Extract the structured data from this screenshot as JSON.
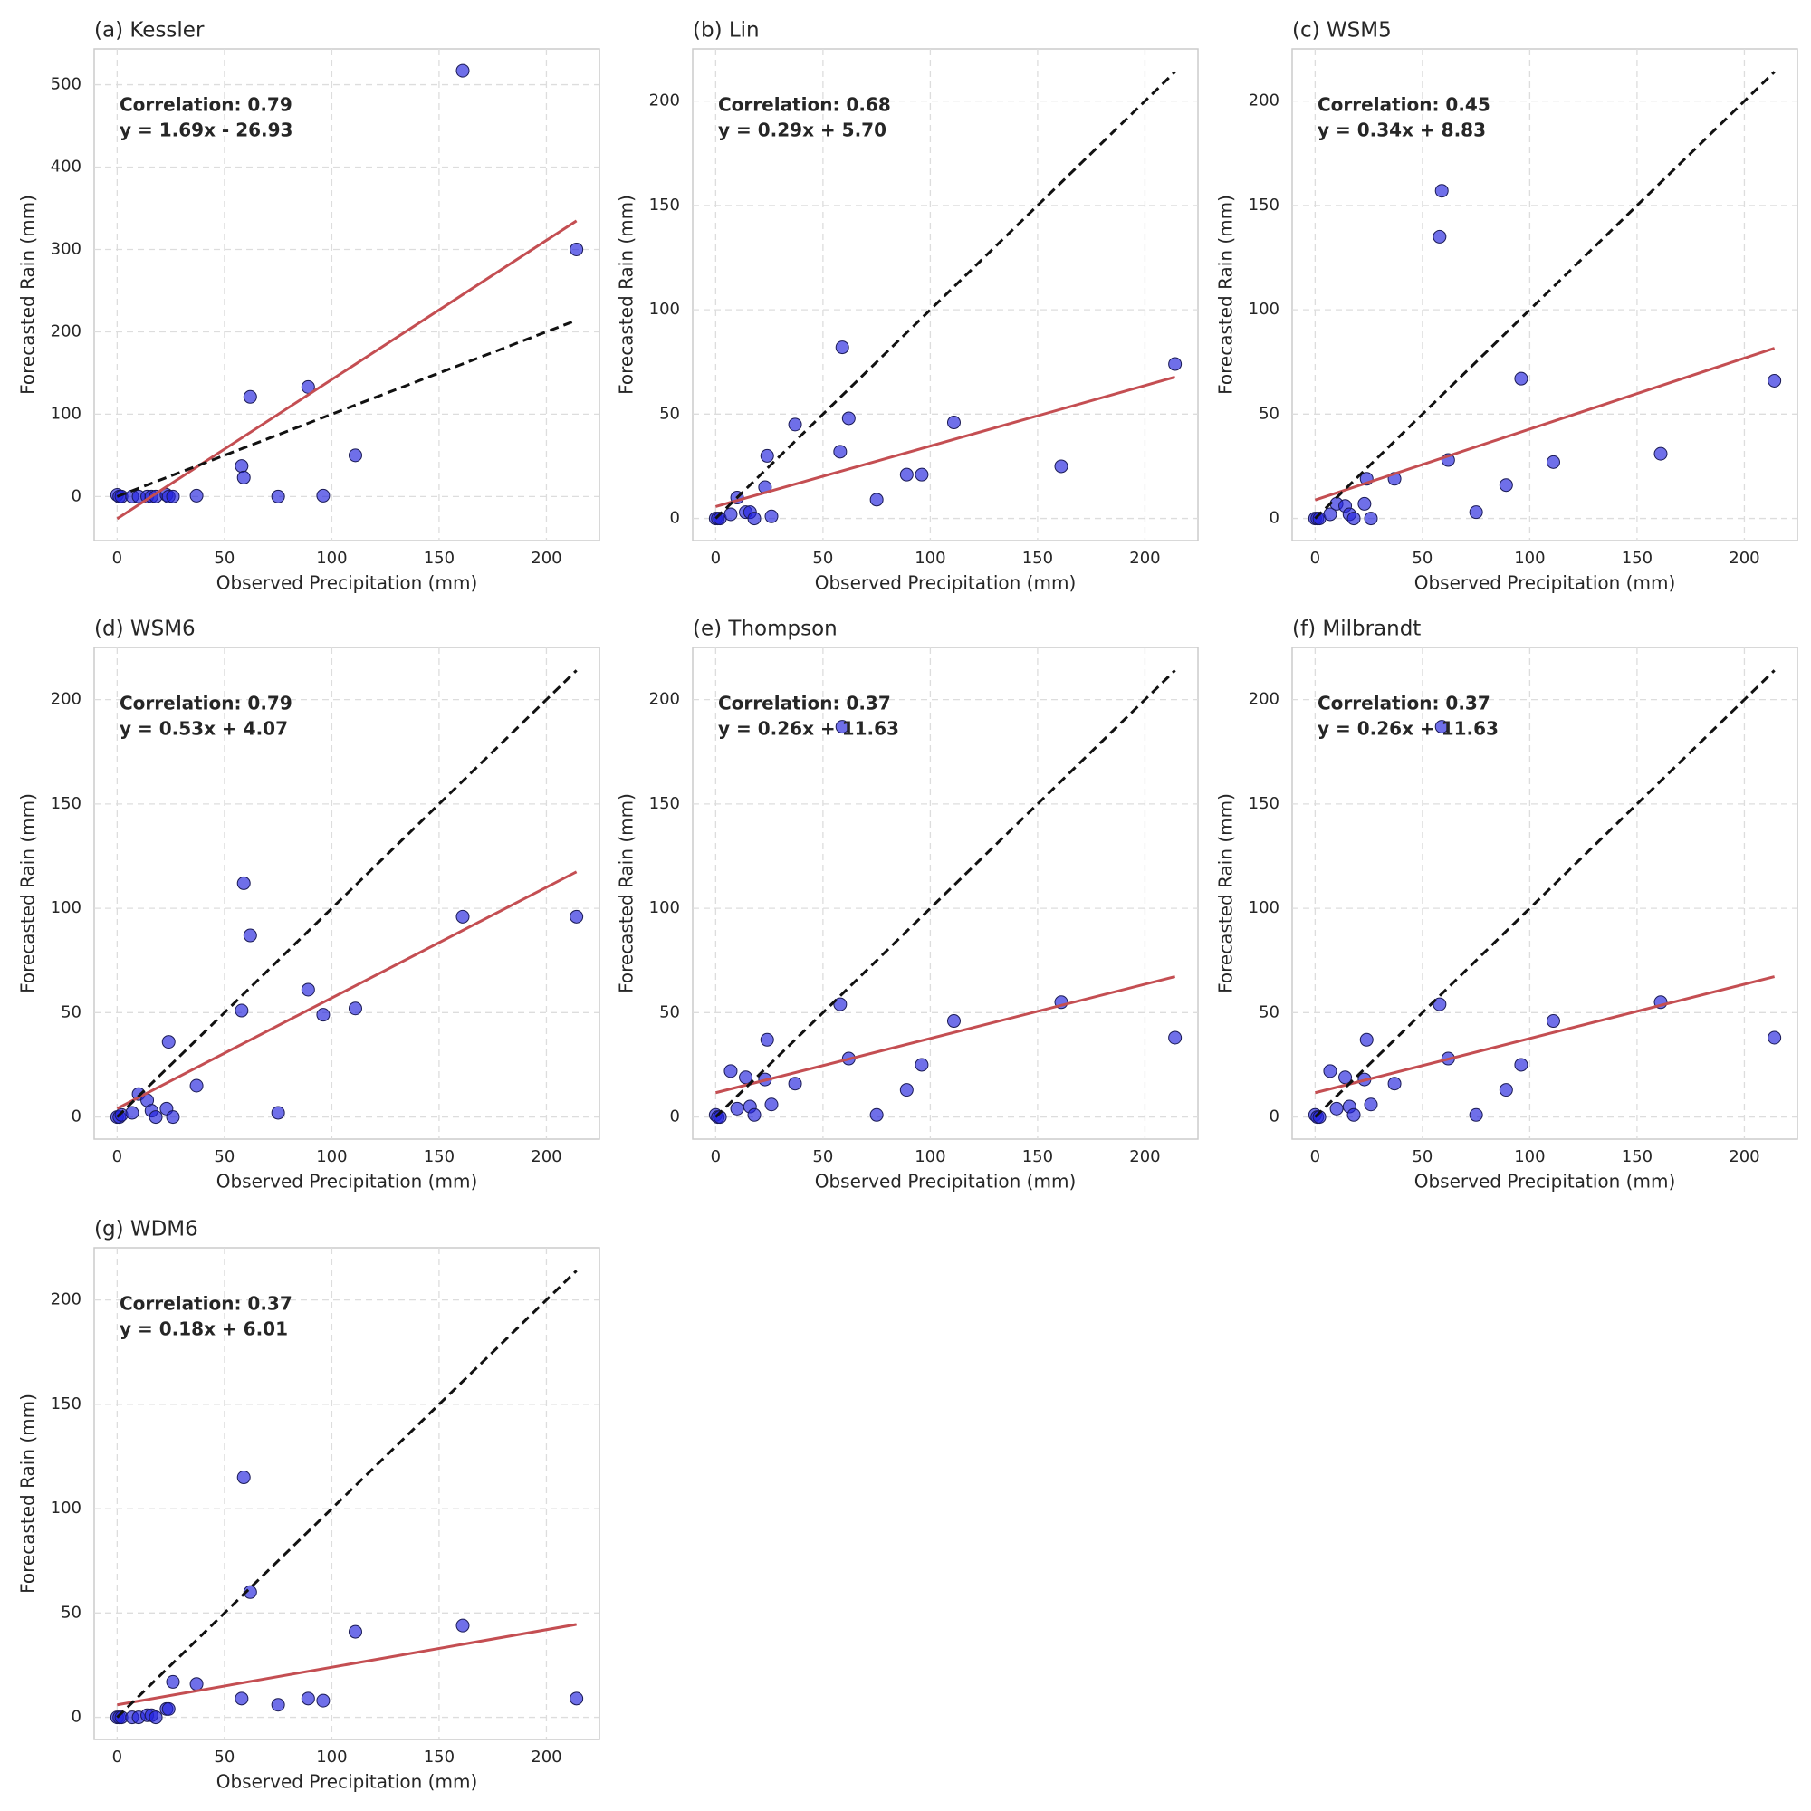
{
  "chart_data": [
    {
      "type": "scatter",
      "title": "(a) Kessler",
      "x_label": "Observed Precipitation (mm)",
      "y_label": "Forecasted Rain (mm)",
      "annotations": [
        "Correlation: 0.79",
        "y = 1.69x - 26.93"
      ],
      "x": [
        0,
        1,
        2,
        7,
        10,
        14,
        16,
        18,
        23,
        24,
        26,
        37,
        58,
        59,
        62,
        75,
        89,
        96,
        111,
        161,
        214
      ],
      "values": [
        2,
        0,
        0,
        0,
        0,
        0,
        0,
        0,
        2,
        0,
        0,
        1,
        37,
        23,
        121,
        0,
        133,
        1,
        50,
        517,
        300
      ],
      "color": "#2222dd",
      "fit_line": {
        "x": [
          0,
          214
        ],
        "y": [
          -26.93,
          334.73
        ],
        "color": "#c44e52"
      },
      "identity_line": {
        "x": [
          0,
          214
        ],
        "y": [
          0,
          214
        ],
        "color": "#111111"
      },
      "xlim": [
        -10.7,
        224.7
      ],
      "ylim": [
        -53.5,
        543.5
      ],
      "xticks": [
        0,
        50,
        100,
        150,
        200
      ],
      "yticks": [
        0,
        100,
        200,
        300,
        400,
        500
      ],
      "grid": true
    },
    {
      "type": "scatter",
      "title": "(b) Lin",
      "x_label": "Observed Precipitation (mm)",
      "y_label": "Forecasted Rain (mm)",
      "annotations": [
        "Correlation: 0.68",
        "y = 0.29x + 5.70"
      ],
      "x": [
        0,
        1,
        2,
        7,
        10,
        14,
        16,
        18,
        23,
        24,
        26,
        37,
        58,
        59,
        62,
        75,
        89,
        96,
        111,
        161,
        214
      ],
      "values": [
        0,
        0,
        0,
        2,
        10,
        3,
        3,
        0,
        15,
        30,
        1,
        45,
        32,
        82,
        48,
        9,
        21,
        21,
        46,
        25,
        74
      ],
      "color": "#2222dd",
      "fit_line": {
        "x": [
          0,
          214
        ],
        "y": [
          5.7,
          67.76
        ],
        "color": "#c44e52"
      },
      "identity_line": {
        "x": [
          0,
          214
        ],
        "y": [
          0,
          214
        ],
        "color": "#111111"
      },
      "xlim": [
        -10.7,
        224.7
      ],
      "ylim": [
        -10.6,
        225
      ],
      "xticks": [
        0,
        50,
        100,
        150,
        200
      ],
      "yticks": [
        0,
        50,
        100,
        150,
        200
      ],
      "grid": true
    },
    {
      "type": "scatter",
      "title": "(c) WSM5",
      "x_label": "Observed Precipitation (mm)",
      "y_label": "Forecasted Rain (mm)",
      "annotations": [
        "Correlation: 0.45",
        "y = 0.34x + 8.83"
      ],
      "x": [
        0,
        1,
        2,
        7,
        10,
        14,
        16,
        18,
        23,
        24,
        26,
        37,
        58,
        59,
        62,
        75,
        89,
        96,
        111,
        161,
        214
      ],
      "values": [
        0,
        0,
        0,
        2,
        7,
        6,
        2,
        0,
        7,
        19,
        0,
        19,
        135,
        157,
        28,
        3,
        16,
        67,
        27,
        31,
        66
      ],
      "color": "#2222dd",
      "fit_line": {
        "x": [
          0,
          214
        ],
        "y": [
          8.83,
          81.59
        ],
        "color": "#c44e52"
      },
      "identity_line": {
        "x": [
          0,
          214
        ],
        "y": [
          0,
          214
        ],
        "color": "#111111"
      },
      "xlim": [
        -10.7,
        224.7
      ],
      "ylim": [
        -10.6,
        225
      ],
      "xticks": [
        0,
        50,
        100,
        150,
        200
      ],
      "yticks": [
        0,
        50,
        100,
        150,
        200
      ],
      "grid": true
    },
    {
      "type": "scatter",
      "title": "(d) WSM6",
      "x_label": "Observed Precipitation (mm)",
      "y_label": "Forecasted Rain (mm)",
      "annotations": [
        "Correlation: 0.79",
        "y = 0.53x + 4.07"
      ],
      "x": [
        0,
        1,
        2,
        7,
        10,
        14,
        16,
        18,
        23,
        24,
        26,
        37,
        58,
        59,
        62,
        75,
        89,
        96,
        111,
        161,
        214
      ],
      "values": [
        0,
        0,
        1,
        2,
        11,
        8,
        3,
        0,
        4,
        36,
        0,
        15,
        51,
        112,
        87,
        2,
        61,
        49,
        52,
        96,
        96
      ],
      "color": "#2222dd",
      "fit_line": {
        "x": [
          0,
          214
        ],
        "y": [
          4.07,
          117.49
        ],
        "color": "#c44e52"
      },
      "identity_line": {
        "x": [
          0,
          214
        ],
        "y": [
          0,
          214
        ],
        "color": "#111111"
      },
      "xlim": [
        -10.7,
        224.7
      ],
      "ylim": [
        -10.6,
        225
      ],
      "xticks": [
        0,
        50,
        100,
        150,
        200
      ],
      "yticks": [
        0,
        50,
        100,
        150,
        200
      ],
      "grid": true
    },
    {
      "type": "scatter",
      "title": "(e) Thompson",
      "x_label": "Observed Precipitation (mm)",
      "y_label": "Forecasted Rain (mm)",
      "annotations": [
        "Correlation: 0.37",
        "y = 0.26x + 11.63"
      ],
      "x": [
        0,
        1,
        2,
        7,
        10,
        14,
        16,
        18,
        23,
        24,
        26,
        37,
        58,
        59,
        62,
        75,
        89,
        96,
        111,
        161,
        214
      ],
      "values": [
        1,
        0,
        0,
        22,
        4,
        19,
        5,
        1,
        18,
        37,
        6,
        16,
        54,
        187,
        28,
        1,
        13,
        25,
        46,
        55,
        38
      ],
      "color": "#2222dd",
      "fit_line": {
        "x": [
          0,
          214
        ],
        "y": [
          11.63,
          67.27
        ],
        "color": "#c44e52"
      },
      "identity_line": {
        "x": [
          0,
          214
        ],
        "y": [
          0,
          214
        ],
        "color": "#111111"
      },
      "xlim": [
        -10.7,
        224.7
      ],
      "ylim": [
        -10.6,
        225
      ],
      "xticks": [
        0,
        50,
        100,
        150,
        200
      ],
      "yticks": [
        0,
        50,
        100,
        150,
        200
      ],
      "grid": true
    },
    {
      "type": "scatter",
      "title": "(f) Milbrandt",
      "x_label": "Observed Precipitation (mm)",
      "y_label": "Forecasted Rain (mm)",
      "annotations": [
        "Correlation: 0.37",
        "y = 0.26x + 11.63"
      ],
      "x": [
        0,
        1,
        2,
        7,
        10,
        14,
        16,
        18,
        23,
        24,
        26,
        37,
        58,
        59,
        62,
        75,
        89,
        96,
        111,
        161,
        214
      ],
      "values": [
        1,
        0,
        0,
        22,
        4,
        19,
        5,
        1,
        18,
        37,
        6,
        16,
        54,
        187,
        28,
        1,
        13,
        25,
        46,
        55,
        38
      ],
      "color": "#2222dd",
      "fit_line": {
        "x": [
          0,
          214
        ],
        "y": [
          11.63,
          67.27
        ],
        "color": "#c44e52"
      },
      "identity_line": {
        "x": [
          0,
          214
        ],
        "y": [
          0,
          214
        ],
        "color": "#111111"
      },
      "xlim": [
        -10.7,
        224.7
      ],
      "ylim": [
        -10.6,
        225
      ],
      "xticks": [
        0,
        50,
        100,
        150,
        200
      ],
      "yticks": [
        0,
        50,
        100,
        150,
        200
      ],
      "grid": true
    },
    {
      "type": "scatter",
      "title": "(g) WDM6",
      "x_label": "Observed Precipitation (mm)",
      "y_label": "Forecasted Rain (mm)",
      "annotations": [
        "Correlation: 0.37",
        "y = 0.18x + 6.01"
      ],
      "x": [
        0,
        1,
        2,
        7,
        10,
        14,
        16,
        18,
        23,
        24,
        26,
        37,
        58,
        59,
        62,
        75,
        89,
        96,
        111,
        161,
        214
      ],
      "values": [
        0,
        0,
        0,
        0,
        0,
        1,
        1,
        0,
        4,
        4,
        17,
        16,
        9,
        115,
        60,
        6,
        9,
        8,
        41,
        44,
        9
      ],
      "color": "#2222dd",
      "fit_line": {
        "x": [
          0,
          214
        ],
        "y": [
          6.01,
          44.53
        ],
        "color": "#c44e52"
      },
      "identity_line": {
        "x": [
          0,
          214
        ],
        "y": [
          0,
          214
        ],
        "color": "#111111"
      },
      "xlim": [
        -10.7,
        224.7
      ],
      "ylim": [
        -10.6,
        225
      ],
      "xticks": [
        0,
        50,
        100,
        150,
        200
      ],
      "yticks": [
        0,
        50,
        100,
        150,
        200
      ],
      "grid": true
    }
  ]
}
